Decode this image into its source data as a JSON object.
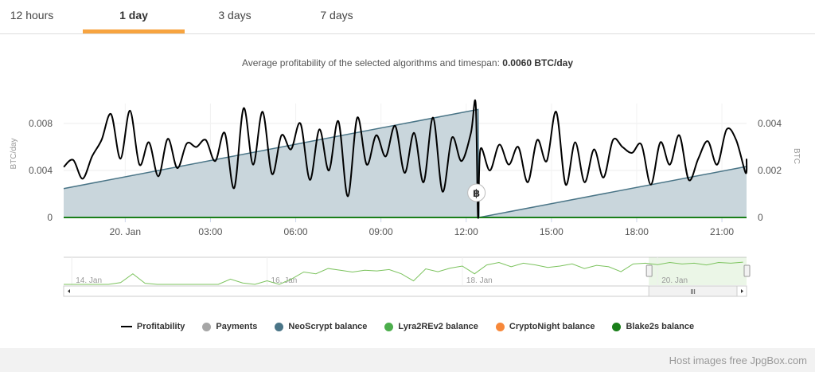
{
  "tabs": [
    {
      "label": "12 hours"
    },
    {
      "label": "1 day",
      "active": true
    },
    {
      "label": "3 days"
    },
    {
      "label": "7 days"
    }
  ],
  "subtitle": {
    "text": "Average profitability of the selected algorithms and timespan:",
    "value": "0.0060 BTC/day"
  },
  "colors": {
    "accent": "#f7a440",
    "profitability": "#000000",
    "neoscrypt": "#4a7587",
    "neoscrypt_fill": "#c9d6dc",
    "blake2s": "#1a7f1a",
    "navigator": "#7cc35e"
  },
  "chart_data": {
    "type": "line",
    "xaxis": {
      "ticks": [
        "20. Jan",
        "03:00",
        "06:00",
        "09:00",
        "12:00",
        "15:00",
        "18:00",
        "21:00"
      ],
      "tick_times": [
        "20 Jan 00:00",
        "20 Jan 03:00",
        "20 Jan 06:00",
        "20 Jan 09:00",
        "20 Jan 12:00",
        "20 Jan 15:00",
        "20 Jan 18:00",
        "20 Jan 21:00"
      ],
      "range": [
        "19 Jan 21:50",
        "20 Jan 21:52"
      ]
    },
    "yaxis_left": {
      "label": "BTC/day",
      "ticks": [
        "0",
        "0.004",
        "0.008"
      ],
      "range": [
        0,
        0.0097
      ]
    },
    "yaxis_right": {
      "label": "BTC",
      "ticks": [
        "0",
        "0.002",
        "0.004"
      ],
      "range": [
        0,
        0.00485
      ]
    },
    "grid": true,
    "legend_position": "bottom",
    "series": [
      {
        "name": "Profitability",
        "axis": "left",
        "points": [
          [
            "19 Jan 21:50",
            0.0043
          ],
          [
            "19 Jan 22:10",
            0.0049
          ],
          [
            "19 Jan 22:30",
            0.0033
          ],
          [
            "19 Jan 22:50",
            0.0052
          ],
          [
            "19 Jan 23:10",
            0.0066
          ],
          [
            "19 Jan 23:30",
            0.0088
          ],
          [
            "19 Jan 23:50",
            0.005
          ],
          [
            "20 Jan 00:10",
            0.0091
          ],
          [
            "20 Jan 00:30",
            0.0045
          ],
          [
            "20 Jan 00:50",
            0.0064
          ],
          [
            "20 Jan 01:10",
            0.0035
          ],
          [
            "20 Jan 01:30",
            0.0067
          ],
          [
            "20 Jan 01:50",
            0.0042
          ],
          [
            "20 Jan 02:10",
            0.0063
          ],
          [
            "20 Jan 02:30",
            0.006
          ],
          [
            "20 Jan 02:50",
            0.0066
          ],
          [
            "20 Jan 03:10",
            0.0048
          ],
          [
            "20 Jan 03:30",
            0.0072
          ],
          [
            "20 Jan 03:50",
            0.0025
          ],
          [
            "20 Jan 04:10",
            0.0093
          ],
          [
            "20 Jan 04:30",
            0.0045
          ],
          [
            "20 Jan 04:50",
            0.009
          ],
          [
            "20 Jan 05:10",
            0.0037
          ],
          [
            "20 Jan 05:30",
            0.007
          ],
          [
            "20 Jan 05:50",
            0.0058
          ],
          [
            "20 Jan 06:10",
            0.008
          ],
          [
            "20 Jan 06:30",
            0.0032
          ],
          [
            "20 Jan 06:50",
            0.0075
          ],
          [
            "20 Jan 07:10",
            0.004
          ],
          [
            "20 Jan 07:30",
            0.0082
          ],
          [
            "20 Jan 07:50",
            0.0018
          ],
          [
            "20 Jan 08:10",
            0.0085
          ],
          [
            "20 Jan 08:30",
            0.0045
          ],
          [
            "20 Jan 08:50",
            0.007
          ],
          [
            "20 Jan 09:10",
            0.0052
          ],
          [
            "20 Jan 09:30",
            0.0078
          ],
          [
            "20 Jan 09:50",
            0.0038
          ],
          [
            "20 Jan 10:10",
            0.0072
          ],
          [
            "20 Jan 10:30",
            0.003
          ],
          [
            "20 Jan 10:50",
            0.0085
          ],
          [
            "20 Jan 11:10",
            0.0022
          ],
          [
            "20 Jan 11:30",
            0.0068
          ],
          [
            "20 Jan 11:50",
            0.0048
          ],
          [
            "20 Jan 12:10",
            0.0072
          ],
          [
            "20 Jan 12:20",
            0.0097
          ],
          [
            "20 Jan 12:25",
            0
          ],
          [
            "20 Jan 12:30",
            0.0058
          ],
          [
            "20 Jan 12:50",
            0.004
          ],
          [
            "20 Jan 13:10",
            0.0062
          ],
          [
            "20 Jan 13:30",
            0.0045
          ],
          [
            "20 Jan 13:50",
            0.006
          ],
          [
            "20 Jan 14:10",
            0.003
          ],
          [
            "20 Jan 14:30",
            0.0066
          ],
          [
            "20 Jan 14:50",
            0.0048
          ],
          [
            "20 Jan 15:10",
            0.009
          ],
          [
            "20 Jan 15:30",
            0.0028
          ],
          [
            "20 Jan 15:50",
            0.0064
          ],
          [
            "20 Jan 16:10",
            0.003
          ],
          [
            "20 Jan 16:30",
            0.0058
          ],
          [
            "20 Jan 16:50",
            0.0034
          ],
          [
            "20 Jan 17:10",
            0.0066
          ],
          [
            "20 Jan 17:30",
            0.006
          ],
          [
            "20 Jan 17:50",
            0.0055
          ],
          [
            "20 Jan 18:10",
            0.0062
          ],
          [
            "20 Jan 18:30",
            0.0028
          ],
          [
            "20 Jan 18:50",
            0.0064
          ],
          [
            "20 Jan 19:10",
            0.0045
          ],
          [
            "20 Jan 19:30",
            0.007
          ],
          [
            "20 Jan 19:50",
            0.0032
          ],
          [
            "20 Jan 20:10",
            0.005
          ],
          [
            "20 Jan 20:30",
            0.0065
          ],
          [
            "20 Jan 20:50",
            0.0045
          ],
          [
            "20 Jan 21:10",
            0.0075
          ],
          [
            "20 Jan 21:30",
            0.0066
          ],
          [
            "20 Jan 21:50",
            0.0038
          ],
          [
            "20 Jan 21:52",
            0.005
          ]
        ]
      },
      {
        "name": "Payments",
        "axis": "right",
        "points": [
          [
            "20 Jan 12:25",
            0
          ]
        ],
        "marker": "bitcoin-icon",
        "marker_label": "฿"
      },
      {
        "name": "NeoScrypt balance",
        "axis": "right",
        "points": [
          [
            "19 Jan 21:50",
            0.00123
          ],
          [
            "20 Jan 12:25",
            0.0046
          ],
          [
            "20 Jan 12:27",
            0
          ],
          [
            "20 Jan 21:52",
            0.00217
          ]
        ]
      },
      {
        "name": "Lyra2REv2 balance",
        "axis": "right",
        "points": []
      },
      {
        "name": "CryptoNight balance",
        "axis": "right",
        "points": []
      },
      {
        "name": "Blake2s balance",
        "axis": "right",
        "points": [
          [
            "19 Jan 21:50",
            0
          ],
          [
            "20 Jan 21:52",
            0
          ]
        ]
      }
    ],
    "navigator": {
      "ticks": [
        "14. Jan",
        "16. Jan",
        "18. Jan",
        "20. Jan"
      ],
      "tick_times": [
        "14 Jan 00:00",
        "16 Jan 00:00",
        "18 Jan 00:00",
        "20 Jan 00:00"
      ],
      "range": [
        "13 Jan 22:00",
        "20 Jan 21:52"
      ],
      "selected": [
        "19 Jan 21:50",
        "20 Jan 21:52"
      ],
      "values_3h_from_14_Jan": [
        0,
        0,
        0,
        0,
        0.0005,
        0.003,
        0.0003,
        0,
        0,
        0,
        0,
        0,
        0,
        0.0015,
        0.0004,
        0,
        0.001,
        0,
        0.0015,
        0.0035,
        0.003,
        0.0045,
        0.004,
        0.0035,
        0.004,
        0.0038,
        0.0042,
        0.003,
        0.001,
        0.0044,
        0.0036,
        0.0046,
        0.0052,
        0.003,
        0.0055,
        0.0062,
        0.005,
        0.006,
        0.0055,
        0.0048,
        0.0052,
        0.0058,
        0.0045,
        0.0054,
        0.005,
        0.0036,
        0.0058,
        0.006,
        0.0056,
        0.0062,
        0.0058,
        0.006,
        0.0055,
        0.0062,
        0.006,
        0.0063
      ]
    }
  },
  "legend": [
    {
      "label": "Profitability",
      "color": "#000000",
      "shape": "line"
    },
    {
      "label": "Payments",
      "color": "#a6a6a6",
      "shape": "dot"
    },
    {
      "label": "NeoScrypt balance",
      "color": "#4a7587",
      "shape": "dot"
    },
    {
      "label": "Lyra2REv2 balance",
      "color": "#4cae4c",
      "shape": "dot"
    },
    {
      "label": "CryptoNight balance",
      "color": "#f7883a",
      "shape": "dot"
    },
    {
      "label": "Blake2s balance",
      "color": "#1a7f1a",
      "shape": "dot"
    }
  ],
  "footer": {
    "text": "Host images free JpgBox.com"
  }
}
